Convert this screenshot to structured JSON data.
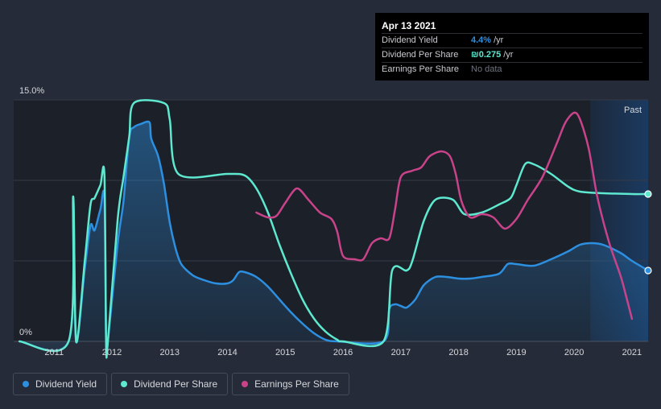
{
  "chart_data": {
    "type": "line",
    "x_range": [
      2010.3,
      2021.28
    ],
    "y_range": [
      0,
      15.0
    ],
    "y_tick_labels": [
      "15.0%",
      "0%"
    ],
    "x_ticks": [
      2011,
      2012,
      2013,
      2014,
      2015,
      2016,
      2017,
      2018,
      2019,
      2020,
      2021
    ],
    "past_label": "Past",
    "past_region_start": 2020.28,
    "series": [
      {
        "name": "Dividend Yield",
        "color": "#2d8fe0",
        "fill": true,
        "endpoint_marker": true,
        "points": [
          [
            2010.4,
            0
          ],
          [
            2011.25,
            0
          ],
          [
            2011.33,
            8.8
          ],
          [
            2011.38,
            0
          ],
          [
            2011.53,
            4.5
          ],
          [
            2011.63,
            7.2
          ],
          [
            2011.7,
            6.9
          ],
          [
            2011.8,
            8.2
          ],
          [
            2011.87,
            8.9
          ],
          [
            2011.9,
            0
          ],
          [
            2011.93,
            0
          ],
          [
            2012.1,
            6.1
          ],
          [
            2012.2,
            8.7
          ],
          [
            2012.3,
            12.7
          ],
          [
            2012.38,
            13.3
          ],
          [
            2012.5,
            13.5
          ],
          [
            2012.65,
            13.6
          ],
          [
            2012.68,
            12.6
          ],
          [
            2012.8,
            11.5
          ],
          [
            2012.9,
            9.8
          ],
          [
            2013.0,
            7.4
          ],
          [
            2013.1,
            5.8
          ],
          [
            2013.2,
            4.8
          ],
          [
            2013.4,
            4.1
          ],
          [
            2013.6,
            3.8
          ],
          [
            2013.8,
            3.6
          ],
          [
            2014.0,
            3.6
          ],
          [
            2014.1,
            3.8
          ],
          [
            2014.2,
            4.3
          ],
          [
            2014.3,
            4.3
          ],
          [
            2014.5,
            4.0
          ],
          [
            2014.7,
            3.4
          ],
          [
            2014.9,
            2.6
          ],
          [
            2015.1,
            1.8
          ],
          [
            2015.3,
            1.1
          ],
          [
            2015.5,
            0.5
          ],
          [
            2015.7,
            0.1
          ],
          [
            2015.9,
            0
          ],
          [
            2016.7,
            0
          ],
          [
            2016.8,
            2.0
          ],
          [
            2016.9,
            2.3
          ],
          [
            2017.0,
            2.2
          ],
          [
            2017.1,
            2.1
          ],
          [
            2017.25,
            2.6
          ],
          [
            2017.4,
            3.5
          ],
          [
            2017.6,
            4.0
          ],
          [
            2017.8,
            4.0
          ],
          [
            2018.0,
            3.9
          ],
          [
            2018.2,
            3.9
          ],
          [
            2018.4,
            4.0
          ],
          [
            2018.7,
            4.2
          ],
          [
            2018.85,
            4.8
          ],
          [
            2019.0,
            4.8
          ],
          [
            2019.3,
            4.7
          ],
          [
            2019.6,
            5.1
          ],
          [
            2019.9,
            5.6
          ],
          [
            2020.1,
            6.0
          ],
          [
            2020.3,
            6.1
          ],
          [
            2020.5,
            6.0
          ],
          [
            2020.8,
            5.5
          ],
          [
            2021.0,
            5.0
          ],
          [
            2021.28,
            4.4
          ]
        ]
      },
      {
        "name": "Dividend Per Share",
        "color": "#5ee8cf",
        "fill": false,
        "endpoint_marker": true,
        "points": [
          [
            2010.4,
            0
          ],
          [
            2011.25,
            0
          ],
          [
            2011.33,
            9.0
          ],
          [
            2011.38,
            0
          ],
          [
            2011.53,
            5.0
          ],
          [
            2011.63,
            8.5
          ],
          [
            2011.7,
            8.9
          ],
          [
            2011.8,
            9.7
          ],
          [
            2011.87,
            10.3
          ],
          [
            2011.9,
            0
          ],
          [
            2011.93,
            0
          ],
          [
            2012.1,
            7.6
          ],
          [
            2012.2,
            10.2
          ],
          [
            2012.3,
            12.7
          ],
          [
            2012.38,
            14.8
          ],
          [
            2012.9,
            14.8
          ],
          [
            2013.0,
            13.8
          ],
          [
            2013.15,
            10.4
          ],
          [
            2014.0,
            10.4
          ],
          [
            2014.3,
            10.3
          ],
          [
            2014.5,
            9.5
          ],
          [
            2014.7,
            8.0
          ],
          [
            2014.9,
            6.0
          ],
          [
            2015.1,
            4.2
          ],
          [
            2015.3,
            2.6
          ],
          [
            2015.5,
            1.4
          ],
          [
            2015.7,
            0.6
          ],
          [
            2015.9,
            0.1
          ],
          [
            2016.0,
            0
          ],
          [
            2016.7,
            0
          ],
          [
            2016.85,
            4.4
          ],
          [
            2017.1,
            4.4
          ],
          [
            2017.2,
            5.0
          ],
          [
            2017.4,
            7.5
          ],
          [
            2017.6,
            8.8
          ],
          [
            2017.9,
            8.8
          ],
          [
            2018.1,
            7.9
          ],
          [
            2018.4,
            8.0
          ],
          [
            2018.7,
            8.5
          ],
          [
            2018.9,
            8.9
          ],
          [
            2019.0,
            9.7
          ],
          [
            2019.15,
            11.0
          ],
          [
            2019.3,
            11.0
          ],
          [
            2019.6,
            10.4
          ],
          [
            2019.9,
            9.6
          ],
          [
            2020.1,
            9.3
          ],
          [
            2020.5,
            9.2
          ],
          [
            2021.0,
            9.15
          ],
          [
            2021.28,
            9.15
          ]
        ]
      },
      {
        "name": "Earnings Per Share",
        "color": "#c8438a",
        "fill": false,
        "endpoint_marker": false,
        "points": [
          [
            2014.5,
            8.0
          ],
          [
            2014.7,
            7.7
          ],
          [
            2014.85,
            7.8
          ],
          [
            2015.0,
            8.6
          ],
          [
            2015.2,
            9.5
          ],
          [
            2015.4,
            8.8
          ],
          [
            2015.6,
            8.0
          ],
          [
            2015.8,
            7.6
          ],
          [
            2015.9,
            6.8
          ],
          [
            2016.0,
            5.3
          ],
          [
            2016.2,
            5.1
          ],
          [
            2016.35,
            5.1
          ],
          [
            2016.5,
            6.1
          ],
          [
            2016.65,
            6.4
          ],
          [
            2016.8,
            6.4
          ],
          [
            2016.9,
            8.2
          ],
          [
            2017.0,
            10.2
          ],
          [
            2017.2,
            10.6
          ],
          [
            2017.35,
            10.8
          ],
          [
            2017.5,
            11.5
          ],
          [
            2017.7,
            11.8
          ],
          [
            2017.85,
            11.5
          ],
          [
            2017.95,
            10.4
          ],
          [
            2018.05,
            8.7
          ],
          [
            2018.2,
            7.7
          ],
          [
            2018.4,
            7.9
          ],
          [
            2018.6,
            7.7
          ],
          [
            2018.8,
            7.0
          ],
          [
            2019.0,
            7.6
          ],
          [
            2019.2,
            8.8
          ],
          [
            2019.45,
            10.2
          ],
          [
            2019.7,
            12.3
          ],
          [
            2019.85,
            13.6
          ],
          [
            2020.0,
            14.2
          ],
          [
            2020.1,
            13.8
          ],
          [
            2020.25,
            12.0
          ],
          [
            2020.4,
            9.0
          ],
          [
            2020.6,
            6.2
          ],
          [
            2020.8,
            4.1
          ],
          [
            2020.9,
            2.8
          ],
          [
            2021.0,
            1.4
          ]
        ]
      }
    ]
  },
  "tooltip": {
    "date": "Apr 13 2021",
    "rows": [
      {
        "name": "Dividend Yield",
        "value": "4.4%",
        "unit": "/yr",
        "color": "#2d8fe0"
      },
      {
        "name": "Dividend Per Share",
        "value": "₪0.275",
        "unit": "/yr",
        "color": "#5ee8cf"
      },
      {
        "name": "Earnings Per Share",
        "value": "No data",
        "unit": "",
        "color": "#6e7380"
      }
    ]
  },
  "legend": [
    {
      "label": "Dividend Yield",
      "color": "#2d8fe0"
    },
    {
      "label": "Dividend Per Share",
      "color": "#5ee8cf"
    },
    {
      "label": "Earnings Per Share",
      "color": "#c8438a"
    }
  ]
}
